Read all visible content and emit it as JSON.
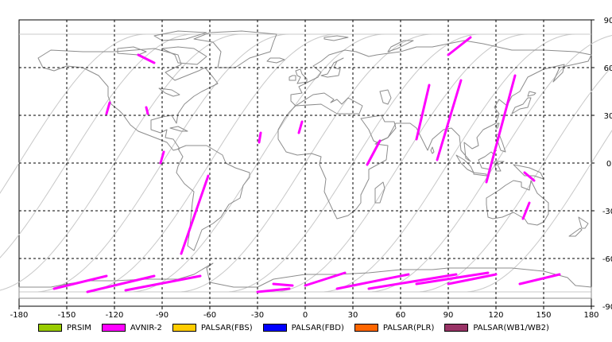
{
  "map": {
    "lon_ticks": [
      "-180",
      "-150",
      "-120",
      "-90",
      "-60",
      "-30",
      "0",
      "30",
      "60",
      "90",
      "120",
      "150",
      "180"
    ],
    "lat_ticks": [
      "90",
      "60",
      "30",
      "0",
      "-30",
      "-60",
      "-90"
    ],
    "lon_range": [
      -180,
      180
    ],
    "lat_range": [
      -90,
      90
    ],
    "gridlines": true,
    "colors": {
      "coastline": "#8c8c8c",
      "orbit_tracks": "#c8c8c8",
      "grid": "#000000",
      "acquisitions": "#ff00ff"
    }
  },
  "legend": [
    {
      "label": "PRSIM",
      "color": "#99cc00"
    },
    {
      "label": "AVNIR-2",
      "color": "#ff00ff"
    },
    {
      "label": "PALSAR(FBS)",
      "color": "#ffcc00"
    },
    {
      "label": "PALSAR(FBD)",
      "color": "#0000ff"
    },
    {
      "label": "PALSAR(PLR)",
      "color": "#ff6600"
    },
    {
      "label": "PALSAR(WB1/WB2)",
      "color": "#993366"
    }
  ]
}
